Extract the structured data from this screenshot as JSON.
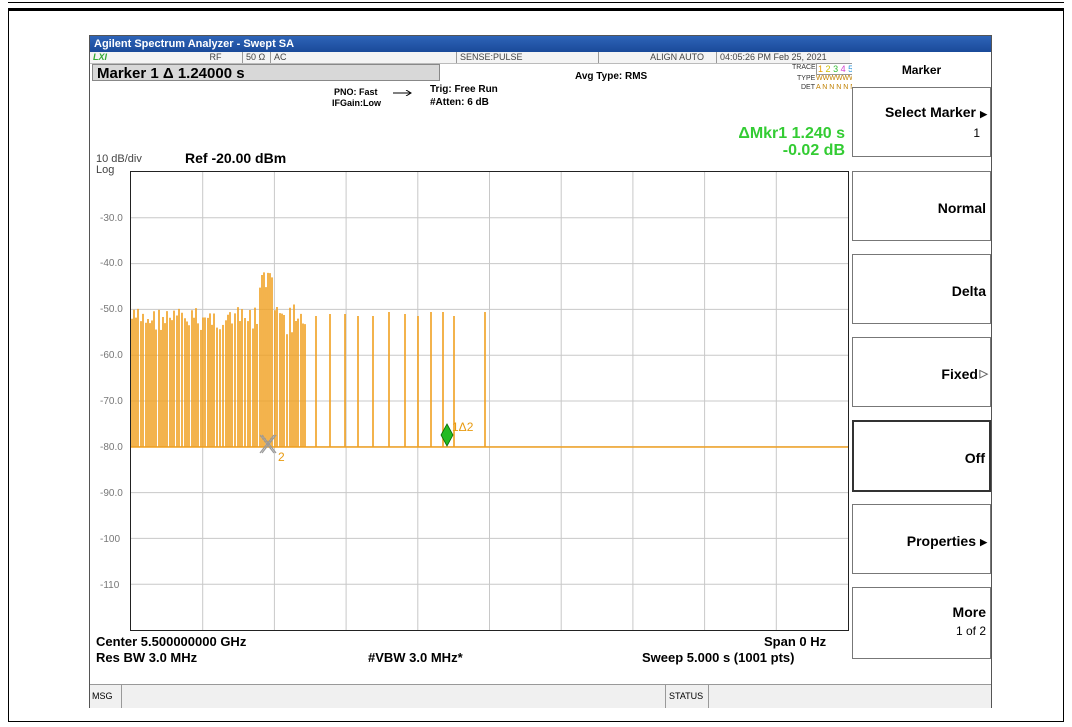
{
  "window": {
    "title": "Agilent Spectrum Analyzer - Swept SA"
  },
  "status_strip": {
    "logo": "LXI",
    "rf": "RF",
    "impedance": "50 Ω",
    "coupling": "AC",
    "sense": "SENSE:PULSE",
    "align": "ALIGN AUTO",
    "datetime": "04:05:26 PM Feb 25, 2021"
  },
  "marker_readout": "Marker 1 Δ 1.24000 s",
  "settings": {
    "pno": "PNO: Fast",
    "ifgain": "IFGain:Low",
    "trig": "Trig: Free Run",
    "atten": "#Atten: 6 dB",
    "avg_type": "Avg Type: RMS"
  },
  "trace_legend": {
    "trace_label": "TRACE",
    "type_label": "TYPE",
    "det_label": "DET",
    "trace_numbers": [
      "1",
      "2",
      "3",
      "4",
      "5",
      "6"
    ],
    "type_value": "WWWWWW",
    "det_value": "A N N N N N",
    "colors": [
      "#e8a000",
      "#e0d000",
      "#33bb33",
      "#d040d0",
      "#3399dd",
      "#e08000"
    ]
  },
  "delta_marker": {
    "time": "ΔMkr1 1.240 s",
    "amplitude": "-0.02 dB"
  },
  "scale": {
    "per_div": "10 dB/div",
    "mode": "Log",
    "ref": "Ref -20.00 dBm"
  },
  "y_axis_labels": [
    "-30.0",
    "-40.0",
    "-50.0",
    "-60.0",
    "-70.0",
    "-80.0",
    "-90.0",
    "-100",
    "-110"
  ],
  "markers": {
    "m1_label": "1Δ2",
    "m2_label": "2"
  },
  "footer": {
    "center": "Center 5.500000000 GHz",
    "span": "Span 0 Hz",
    "rbw": "Res BW 3.0 MHz",
    "vbw": "#VBW 3.0 MHz*",
    "sweep": "Sweep  5.000 s (1001 pts)"
  },
  "softkeys": {
    "title": "Marker",
    "select_marker": "Select Marker",
    "select_marker_value": "1",
    "normal": "Normal",
    "delta": "Delta",
    "fixed": "Fixed",
    "off": "Off",
    "properties": "Properties",
    "more": "More",
    "more_page": "1 of 2"
  },
  "bottom": {
    "msg": "MSG",
    "status": "STATUS"
  },
  "colors": {
    "trace": "#f0a020",
    "marker1": "#22bb22",
    "delta_text": "#33cc33",
    "titlebar": "#1f52a8"
  }
}
